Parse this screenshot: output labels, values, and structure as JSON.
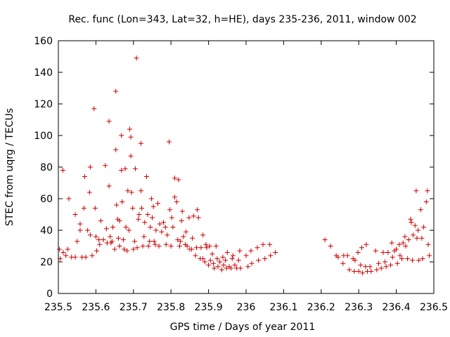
{
  "chart_data": {
    "type": "scatter",
    "title": "Rec. func (Lon=343, Lat=32, h=HE), days 235-236, 2011, window 002",
    "xlabel": "GPS time / Days of year 2011",
    "ylabel": "STEC from uqrg / TECUs",
    "xlim": [
      235.5,
      236.5
    ],
    "ylim": [
      0,
      160
    ],
    "grid": false,
    "x_ticks": [
      "235.5",
      "235.6",
      "235.7",
      "235.8",
      "235.9",
      "236",
      "236.1",
      "236.2",
      "236.3",
      "236.4",
      "236.5"
    ],
    "y_ticks": [
      "0",
      "20",
      "40",
      "60",
      "80",
      "100",
      "120",
      "140",
      "160"
    ],
    "marker": "plus",
    "color": "#cc0000",
    "points": [
      [
        235.503,
        28
      ],
      [
        235.505,
        22
      ],
      [
        235.512,
        78
      ],
      [
        235.513,
        26
      ],
      [
        235.52,
        24
      ],
      [
        235.525,
        28
      ],
      [
        235.528,
        60
      ],
      [
        235.535,
        23
      ],
      [
        235.545,
        23
      ],
      [
        235.545,
        50
      ],
      [
        235.55,
        33
      ],
      [
        235.558,
        40
      ],
      [
        235.558,
        44
      ],
      [
        235.563,
        23
      ],
      [
        235.568,
        54
      ],
      [
        235.57,
        74
      ],
      [
        235.573,
        23
      ],
      [
        235.578,
        40
      ],
      [
        235.583,
        64
      ],
      [
        235.585,
        80
      ],
      [
        235.585,
        37
      ],
      [
        235.59,
        24
      ],
      [
        235.595,
        117
      ],
      [
        235.598,
        54
      ],
      [
        235.6,
        36
      ],
      [
        235.602,
        27
      ],
      [
        235.608,
        34
      ],
      [
        235.61,
        31
      ],
      [
        235.613,
        46
      ],
      [
        235.62,
        34
      ],
      [
        235.625,
        81
      ],
      [
        235.628,
        41
      ],
      [
        235.63,
        32
      ],
      [
        235.635,
        68
      ],
      [
        235.635,
        109
      ],
      [
        235.638,
        36
      ],
      [
        235.64,
        32
      ],
      [
        235.643,
        33
      ],
      [
        235.645,
        42
      ],
      [
        235.65,
        28
      ],
      [
        235.653,
        128
      ],
      [
        235.653,
        91
      ],
      [
        235.655,
        56
      ],
      [
        235.658,
        47
      ],
      [
        235.66,
        35
      ],
      [
        235.663,
        30
      ],
      [
        235.663,
        46
      ],
      [
        235.668,
        100
      ],
      [
        235.668,
        78
      ],
      [
        235.67,
        58
      ],
      [
        235.673,
        34
      ],
      [
        235.675,
        28
      ],
      [
        235.678,
        79
      ],
      [
        235.68,
        42
      ],
      [
        235.683,
        27
      ],
      [
        235.685,
        65
      ],
      [
        235.688,
        40
      ],
      [
        235.69,
        104
      ],
      [
        235.693,
        99
      ],
      [
        235.693,
        87
      ],
      [
        235.695,
        64
      ],
      [
        235.698,
        54
      ],
      [
        235.7,
        28
      ],
      [
        235.703,
        33
      ],
      [
        235.705,
        79
      ],
      [
        235.708,
        149
      ],
      [
        235.71,
        29
      ],
      [
        235.713,
        47
      ],
      [
        235.715,
        50
      ],
      [
        235.72,
        95
      ],
      [
        235.72,
        65
      ],
      [
        235.722,
        54
      ],
      [
        235.725,
        30
      ],
      [
        235.728,
        36
      ],
      [
        235.73,
        45
      ],
      [
        235.735,
        74
      ],
      [
        235.738,
        50
      ],
      [
        235.74,
        30
      ],
      [
        235.743,
        33
      ],
      [
        235.745,
        42
      ],
      [
        235.748,
        60
      ],
      [
        235.75,
        48
      ],
      [
        235.753,
        55
      ],
      [
        235.755,
        33
      ],
      [
        235.758,
        31
      ],
      [
        235.76,
        40
      ],
      [
        235.765,
        57
      ],
      [
        235.768,
        30
      ],
      [
        235.77,
        44
      ],
      [
        235.775,
        39
      ],
      [
        235.78,
        45
      ],
      [
        235.785,
        42
      ],
      [
        235.787,
        31
      ],
      [
        235.79,
        37
      ],
      [
        235.795,
        96
      ],
      [
        235.797,
        53
      ],
      [
        235.8,
        30
      ],
      [
        235.802,
        48
      ],
      [
        235.805,
        42
      ],
      [
        235.81,
        73
      ],
      [
        235.81,
        61
      ],
      [
        235.815,
        58
      ],
      [
        235.818,
        34
      ],
      [
        235.82,
        72
      ],
      [
        235.823,
        30
      ],
      [
        235.825,
        33
      ],
      [
        235.828,
        46
      ],
      [
        235.83,
        52
      ],
      [
        235.833,
        36
      ],
      [
        235.838,
        31
      ],
      [
        235.84,
        39
      ],
      [
        235.843,
        30
      ],
      [
        235.848,
        48
      ],
      [
        235.85,
        28
      ],
      [
        235.855,
        28
      ],
      [
        235.857,
        35
      ],
      [
        235.86,
        49
      ],
      [
        235.865,
        24
      ],
      [
        235.868,
        29
      ],
      [
        235.87,
        53
      ],
      [
        235.873,
        48
      ],
      [
        235.878,
        22
      ],
      [
        235.88,
        29
      ],
      [
        235.885,
        37
      ],
      [
        235.885,
        22
      ],
      [
        235.89,
        20
      ],
      [
        235.893,
        31
      ],
      [
        235.895,
        29
      ],
      [
        235.9,
        18
      ],
      [
        235.903,
        30
      ],
      [
        235.905,
        21
      ],
      [
        235.91,
        25
      ],
      [
        235.913,
        19
      ],
      [
        235.915,
        16
      ],
      [
        235.92,
        30
      ],
      [
        235.923,
        22
      ],
      [
        235.925,
        17
      ],
      [
        235.93,
        20
      ],
      [
        235.935,
        15
      ],
      [
        235.938,
        23
      ],
      [
        235.94,
        18
      ],
      [
        235.945,
        21
      ],
      [
        235.948,
        16
      ],
      [
        235.95,
        26
      ],
      [
        235.955,
        17
      ],
      [
        235.96,
        16
      ],
      [
        235.963,
        22
      ],
      [
        235.965,
        24
      ],
      [
        235.97,
        18
      ],
      [
        235.975,
        16
      ],
      [
        235.98,
        21
      ],
      [
        235.983,
        27
      ],
      [
        235.985,
        16
      ],
      [
        236.0,
        24
      ],
      [
        236.005,
        17
      ],
      [
        236.013,
        27
      ],
      [
        236.015,
        19
      ],
      [
        236.03,
        29
      ],
      [
        236.033,
        21
      ],
      [
        236.045,
        31
      ],
      [
        236.05,
        22
      ],
      [
        236.063,
        31
      ],
      [
        236.065,
        24
      ],
      [
        236.078,
        26
      ],
      [
        236.21,
        34
      ],
      [
        236.225,
        30
      ],
      [
        236.24,
        24
      ],
      [
        236.245,
        23
      ],
      [
        236.258,
        19
      ],
      [
        236.26,
        24
      ],
      [
        236.27,
        24
      ],
      [
        236.275,
        15
      ],
      [
        236.285,
        22
      ],
      [
        236.288,
        14
      ],
      [
        236.29,
        21
      ],
      [
        236.298,
        26
      ],
      [
        236.3,
        14
      ],
      [
        236.305,
        18
      ],
      [
        236.308,
        29
      ],
      [
        236.31,
        13
      ],
      [
        236.318,
        17
      ],
      [
        236.32,
        31
      ],
      [
        236.323,
        14
      ],
      [
        236.33,
        17
      ],
      [
        236.333,
        14
      ],
      [
        236.345,
        27
      ],
      [
        236.348,
        15
      ],
      [
        236.353,
        19
      ],
      [
        236.36,
        16
      ],
      [
        236.365,
        26
      ],
      [
        236.37,
        20
      ],
      [
        236.373,
        17
      ],
      [
        236.378,
        26
      ],
      [
        236.385,
        18
      ],
      [
        236.388,
        32
      ],
      [
        236.39,
        23
      ],
      [
        236.395,
        27
      ],
      [
        236.4,
        28
      ],
      [
        236.403,
        19
      ],
      [
        236.408,
        31
      ],
      [
        236.41,
        24
      ],
      [
        236.415,
        22
      ],
      [
        236.418,
        32
      ],
      [
        236.423,
        36
      ],
      [
        236.425,
        30
      ],
      [
        236.43,
        22
      ],
      [
        236.433,
        34
      ],
      [
        236.438,
        47
      ],
      [
        236.44,
        45
      ],
      [
        236.443,
        21
      ],
      [
        236.445,
        37
      ],
      [
        236.45,
        43
      ],
      [
        236.453,
        65
      ],
      [
        236.455,
        35
      ],
      [
        236.458,
        40
      ],
      [
        236.46,
        21
      ],
      [
        236.465,
        53
      ],
      [
        236.468,
        35
      ],
      [
        236.47,
        22
      ],
      [
        236.473,
        42
      ],
      [
        236.48,
        58
      ],
      [
        236.483,
        65
      ],
      [
        236.485,
        31
      ],
      [
        236.488,
        24
      ]
    ]
  }
}
